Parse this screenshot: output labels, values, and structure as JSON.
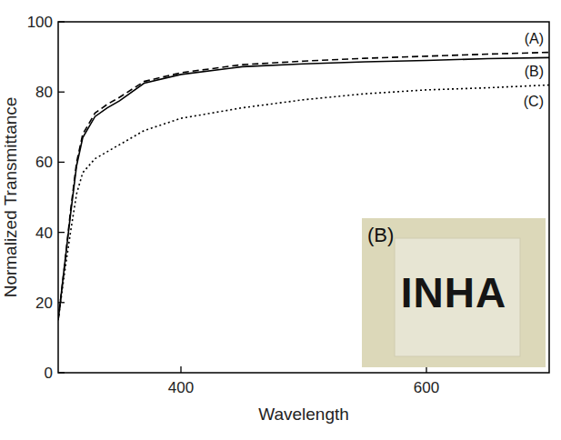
{
  "chart_data": {
    "type": "line",
    "x_label": "Wavelength",
    "y_label": "Normalized Transmittance",
    "x": [
      300,
      305,
      310,
      315,
      320,
      330,
      340,
      350,
      370,
      400,
      450,
      500,
      550,
      600,
      650,
      700
    ],
    "series": [
      {
        "name": "(A)",
        "color": "#000000",
        "line_style": "dashed",
        "values": [
          15,
          30,
          46,
          60,
          68,
          74,
          76.5,
          78.5,
          83,
          85.5,
          87.8,
          88.8,
          89.6,
          90.2,
          90.8,
          91.3
        ]
      },
      {
        "name": "(B)",
        "color": "#000000",
        "line_style": "solid",
        "values": [
          15,
          30,
          45,
          59,
          67,
          73,
          75.5,
          77.5,
          82.5,
          85,
          87.2,
          88,
          88.6,
          89,
          89.5,
          89.8
        ]
      },
      {
        "name": "(C)",
        "color": "#000000",
        "line_style": "dotted",
        "values": [
          15,
          28,
          40,
          51,
          57,
          61,
          63,
          65,
          69,
          72.5,
          75.5,
          77.8,
          79.5,
          80.6,
          81.2,
          82
        ]
      }
    ],
    "xlim": [
      300,
      700
    ],
    "xticks": [
      400,
      600
    ],
    "ylim": [
      0,
      100
    ],
    "yticks": [
      0,
      20,
      40,
      60,
      80,
      100
    ],
    "grid": false,
    "annotations": [
      "(B)",
      "INHA"
    ]
  }
}
